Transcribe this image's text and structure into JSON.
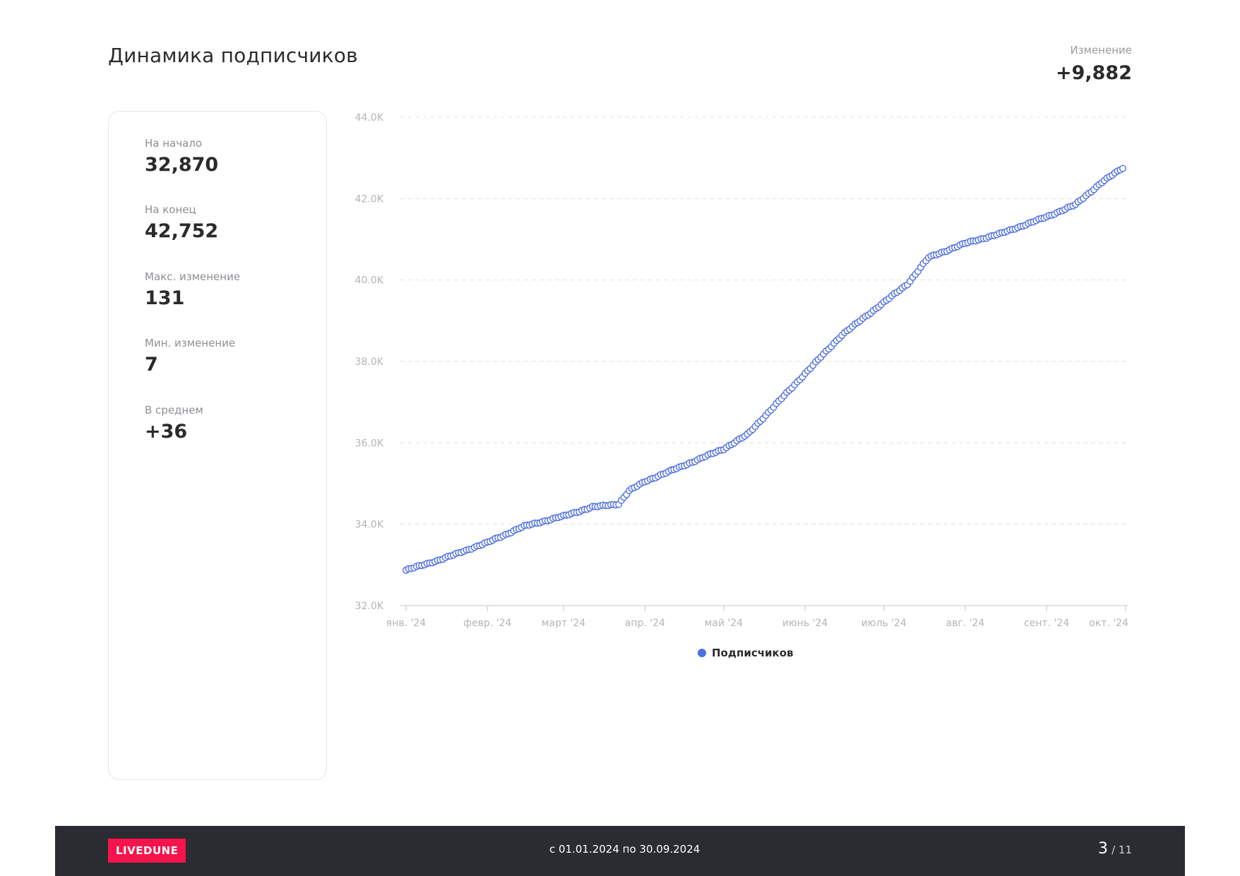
{
  "header": {
    "title": "Динамика подписчиков",
    "change_label": "Изменение",
    "change_value": "+9,882"
  },
  "stats": [
    {
      "label": "На начало",
      "value": "32,870"
    },
    {
      "label": "На конец",
      "value": "42,752"
    },
    {
      "label": "Макс. изменение",
      "value": "131"
    },
    {
      "label": "Мин. изменение",
      "value": "7"
    },
    {
      "label": "В среднем",
      "value": "+36"
    }
  ],
  "chart_data": {
    "type": "line",
    "x_range": [
      "2024-01-01",
      "2024-09-30"
    ],
    "ylim": [
      32000,
      44000
    ],
    "y_ticks": [
      32000,
      34000,
      36000,
      38000,
      40000,
      42000,
      44000
    ],
    "y_tick_labels": [
      "32.0K",
      "34.0K",
      "36.0K",
      "38.0K",
      "40.0K",
      "42.0K",
      "44.0K"
    ],
    "x_ticks": [
      "2024-01-01",
      "2024-02-01",
      "2024-03-01",
      "2024-04-01",
      "2024-05-01",
      "2024-06-01",
      "2024-07-01",
      "2024-08-01",
      "2024-09-01",
      "2024-10-01"
    ],
    "x_tick_labels": [
      "янв. '24",
      "февр. '24",
      "март '24",
      "апр. '24",
      "май '24",
      "июнь '24",
      "июль '24",
      "авг. '24",
      "сент. '24",
      "окт. '24"
    ],
    "grid": true,
    "legend_position": "bottom-center",
    "series": [
      {
        "name": "Подписчиков",
        "color": "#4e6fdf",
        "points": [
          [
            "2024-01-01",
            32870
          ],
          [
            "2024-01-15",
            33150
          ],
          [
            "2024-02-01",
            33550
          ],
          [
            "2024-02-15",
            33950
          ],
          [
            "2024-03-01",
            34200
          ],
          [
            "2024-03-12",
            34420
          ],
          [
            "2024-03-22",
            34500
          ],
          [
            "2024-03-26",
            34820
          ],
          [
            "2024-04-01",
            35050
          ],
          [
            "2024-04-15",
            35420
          ],
          [
            "2024-05-01",
            35850
          ],
          [
            "2024-05-10",
            36200
          ],
          [
            "2024-06-01",
            37700
          ],
          [
            "2024-06-15",
            38650
          ],
          [
            "2024-07-01",
            39450
          ],
          [
            "2024-07-10",
            39900
          ],
          [
            "2024-07-18",
            40550
          ],
          [
            "2024-08-01",
            40900
          ],
          [
            "2024-08-15",
            41150
          ],
          [
            "2024-09-01",
            41550
          ],
          [
            "2024-09-12",
            41850
          ],
          [
            "2024-09-22",
            42400
          ],
          [
            "2024-09-30",
            42752
          ]
        ]
      }
    ]
  },
  "legend": {
    "label": "Подписчиков"
  },
  "footer": {
    "brand": "LIVEDUNE",
    "date_range": "с 01.01.2024 по 30.09.2024",
    "page_current": "3",
    "page_total": "/ 11"
  }
}
